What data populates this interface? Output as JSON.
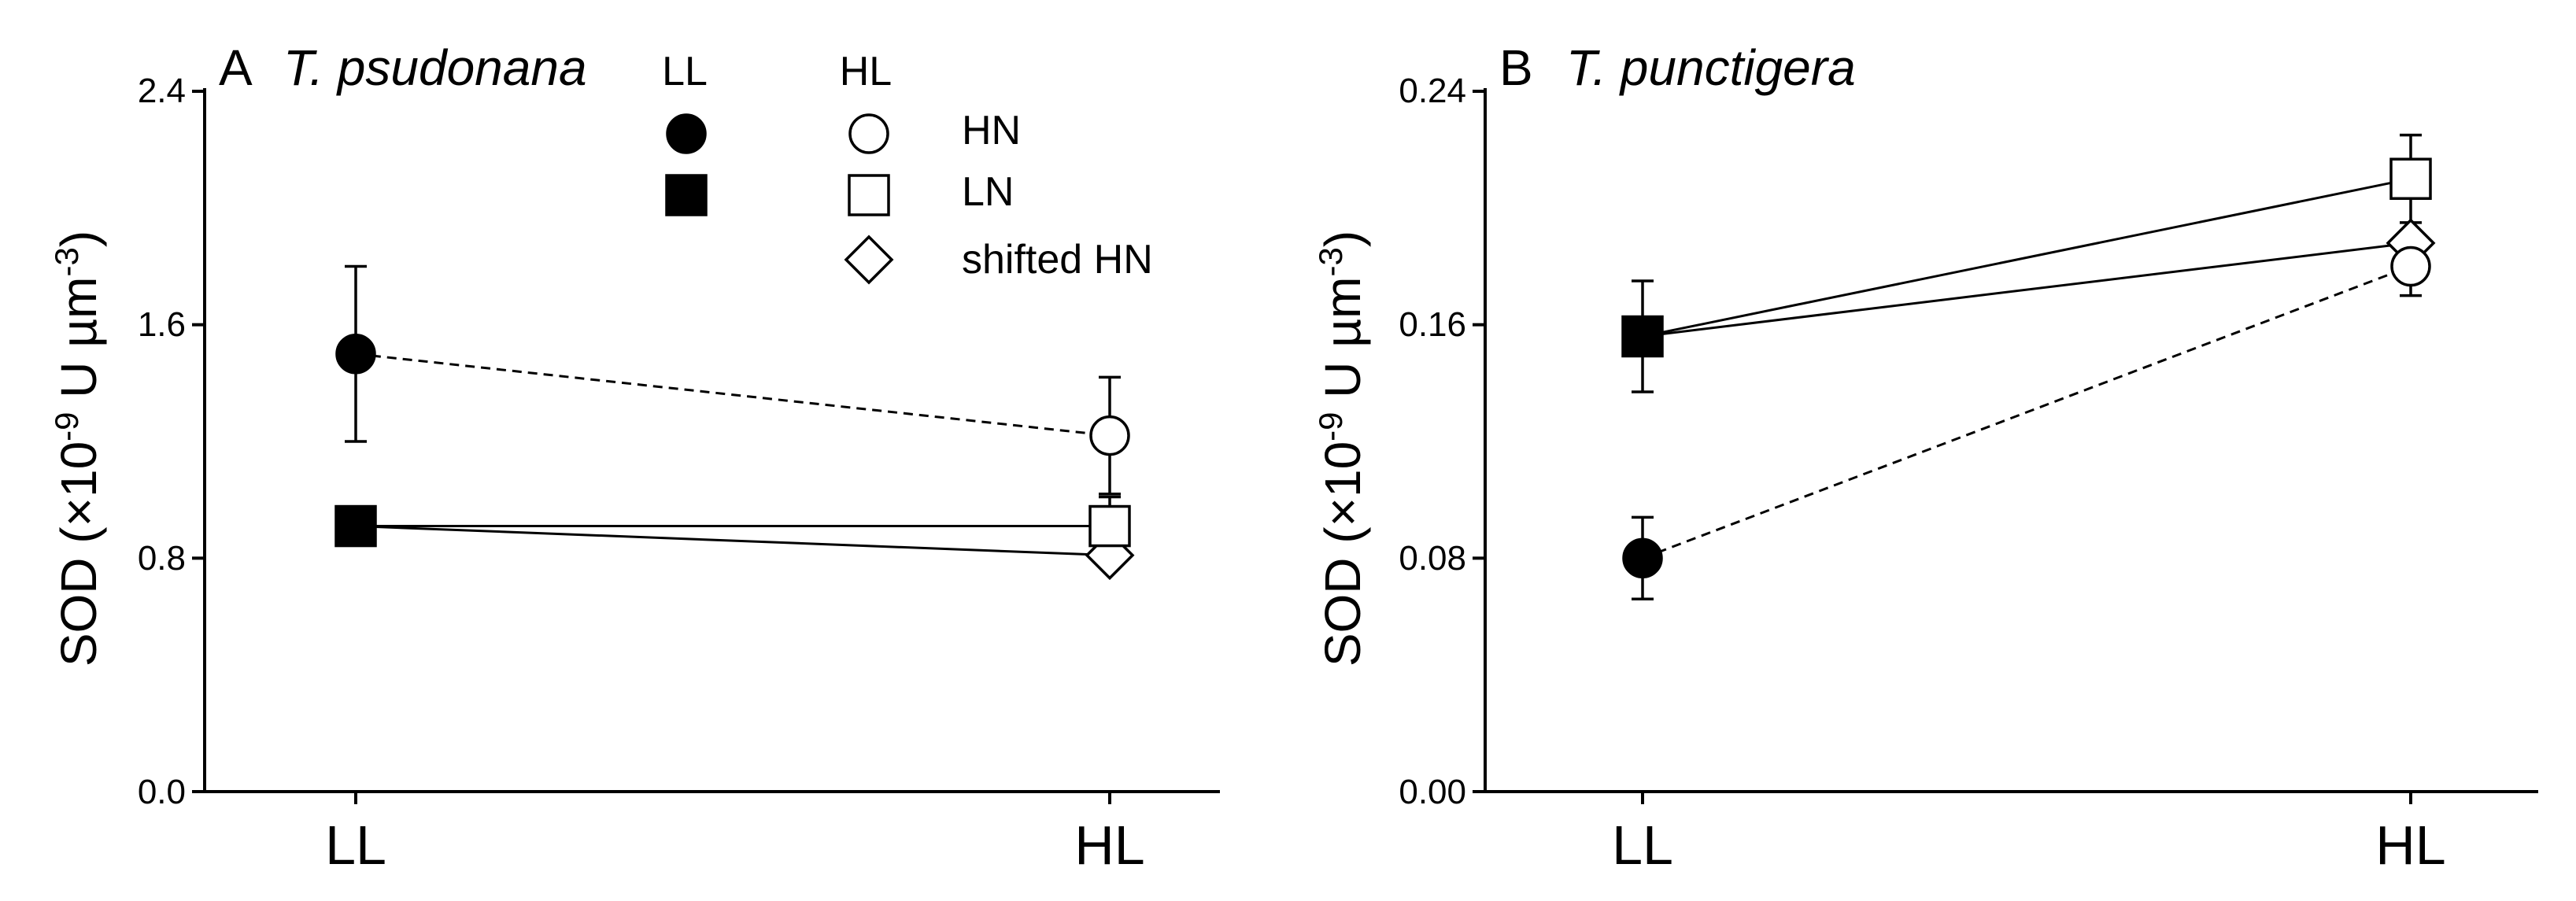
{
  "chart_data": [
    {
      "type": "line",
      "panel_letter": "A",
      "title": "T. psudonana",
      "ylabel": "SOD (×10-9 U µm-3)",
      "ylabel_parts": {
        "base": "SOD (×10",
        "exp1": "-9",
        "mid": " U µm",
        "exp2": "-3",
        "end": ")"
      },
      "categories": [
        "LL",
        "HL"
      ],
      "ylim": [
        0,
        2.4
      ],
      "yticks": [
        "0.0",
        "0.8",
        "1.6",
        "2.4"
      ],
      "yticks_values": [
        0,
        0.8,
        1.6,
        2.4
      ],
      "series": [
        {
          "key": "HN",
          "marker": "circle",
          "dash": true,
          "points": [
            {
              "cat": 0,
              "y": 1.5,
              "err": 0.3,
              "fill": "#000000"
            },
            {
              "cat": 1,
              "y": 1.22,
              "err": 0.2,
              "fill": "#ffffff"
            }
          ]
        },
        {
          "key": "LN",
          "marker": "square",
          "dash": false,
          "points": [
            {
              "cat": 0,
              "y": 0.91,
              "err": 0.0,
              "fill": "#000000"
            },
            {
              "cat": 1,
              "y": 0.91,
              "err": 0.1,
              "fill": "#ffffff"
            }
          ]
        },
        {
          "key": "shifted HN",
          "marker": "diamond",
          "dash": false,
          "points": [
            {
              "cat": 0,
              "y": 0.91,
              "err": 0.0,
              "fill": "#000000",
              "hidden": true
            },
            {
              "cat": 1,
              "y": 0.81,
              "err": 0.0,
              "fill": "#ffffff"
            }
          ]
        }
      ]
    },
    {
      "type": "line",
      "panel_letter": "B",
      "title": "T. punctigera",
      "ylabel": "SOD (×10-9 U µm-3)",
      "ylabel_parts": {
        "base": "SOD (×10",
        "exp1": "-9",
        "mid": " U µm",
        "exp2": "-3",
        "end": ")"
      },
      "categories": [
        "LL",
        "HL"
      ],
      "ylim": [
        0,
        0.24
      ],
      "yticks": [
        "0.00",
        "0.08",
        "0.16",
        "0.24"
      ],
      "yticks_values": [
        0,
        0.08,
        0.16,
        0.24
      ],
      "series": [
        {
          "key": "HN",
          "marker": "circle",
          "dash": true,
          "points": [
            {
              "cat": 0,
              "y": 0.08,
              "err": 0.014,
              "fill": "#000000"
            },
            {
              "cat": 1,
              "y": 0.18,
              "err": 0.01,
              "fill": "#ffffff"
            }
          ]
        },
        {
          "key": "LN",
          "marker": "square",
          "dash": false,
          "points": [
            {
              "cat": 0,
              "y": 0.156,
              "err": 0.019,
              "fill": "#000000"
            },
            {
              "cat": 1,
              "y": 0.21,
              "err": 0.015,
              "fill": "#ffffff"
            }
          ]
        },
        {
          "key": "shifted HN",
          "marker": "diamond",
          "dash": false,
          "points": [
            {
              "cat": 0,
              "y": 0.156,
              "err": 0.0,
              "fill": "#000000",
              "hidden": true
            },
            {
              "cat": 1,
              "y": 0.188,
              "err": 0.0,
              "fill": "#ffffff"
            }
          ]
        }
      ]
    }
  ],
  "legend": {
    "placement": "top-center of panel A",
    "header_filled": "LL",
    "header_open": "HL",
    "entries": [
      {
        "label": "HN",
        "marker": "circle",
        "has_filled": true
      },
      {
        "label": "LN",
        "marker": "square",
        "has_filled": true
      },
      {
        "label": "shifted HN",
        "marker": "diamond",
        "has_filled": false
      }
    ]
  }
}
